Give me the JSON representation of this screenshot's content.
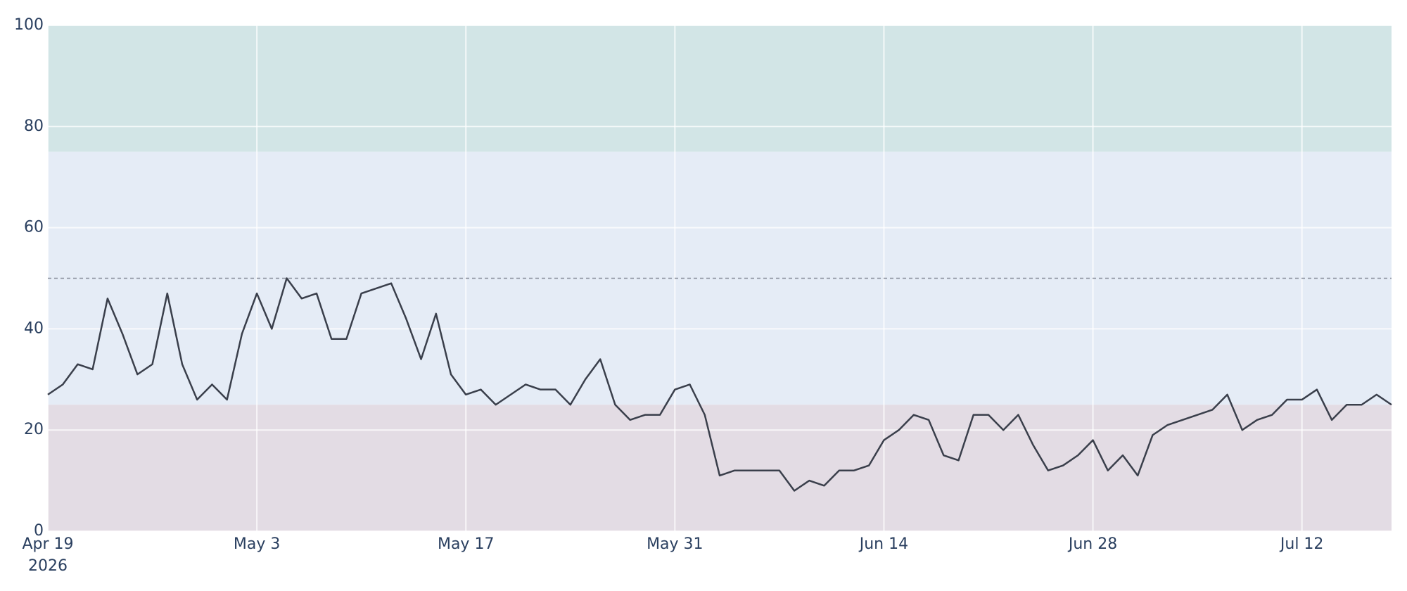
{
  "chart_data": {
    "type": "line",
    "x": [
      "2026-04-19",
      "2026-04-20",
      "2026-04-21",
      "2026-04-22",
      "2026-04-23",
      "2026-04-24",
      "2026-04-25",
      "2026-04-26",
      "2026-04-27",
      "2026-04-28",
      "2026-04-29",
      "2026-04-30",
      "2026-05-01",
      "2026-05-02",
      "2026-05-03",
      "2026-05-04",
      "2026-05-05",
      "2026-05-06",
      "2026-05-07",
      "2026-05-08",
      "2026-05-09",
      "2026-05-10",
      "2026-05-12",
      "2026-05-13",
      "2026-05-14",
      "2026-05-15",
      "2026-05-16",
      "2026-05-17",
      "2026-05-18",
      "2026-05-19",
      "2026-05-21",
      "2026-05-22",
      "2026-05-23",
      "2026-05-24",
      "2026-05-25",
      "2026-05-26",
      "2026-05-27",
      "2026-05-28",
      "2026-05-29",
      "2026-05-30",
      "2026-05-31",
      "2026-06-01",
      "2026-06-02",
      "2026-06-03",
      "2026-06-04",
      "2026-06-07",
      "2026-06-08",
      "2026-06-09",
      "2026-06-10",
      "2026-06-11",
      "2026-06-12",
      "2026-06-13",
      "2026-06-14",
      "2026-06-15",
      "2026-06-16",
      "2026-06-17",
      "2026-06-18",
      "2026-06-19",
      "2026-06-20",
      "2026-06-21",
      "2026-06-22",
      "2026-06-23",
      "2026-06-24",
      "2026-06-25",
      "2026-06-26",
      "2026-06-27",
      "2026-06-28",
      "2026-06-29",
      "2026-06-30",
      "2026-07-01",
      "2026-07-02",
      "2026-07-03",
      "2026-07-06",
      "2026-07-07",
      "2026-07-08",
      "2026-07-09",
      "2026-07-10",
      "2026-07-11",
      "2026-07-12",
      "2026-07-13",
      "2026-07-14",
      "2026-07-15",
      "2026-07-16",
      "2026-07-17",
      "2026-07-18"
    ],
    "series": [
      {
        "color": "#3a3f4b",
        "values": [
          27,
          29,
          33,
          32,
          46,
          39,
          31,
          33,
          47,
          33,
          26,
          29,
          26,
          39,
          47,
          40,
          50,
          46,
          47,
          38,
          38,
          47,
          49,
          42,
          34,
          43,
          31,
          27,
          28,
          25,
          29,
          28,
          28,
          25,
          30,
          34,
          25,
          22,
          23,
          23,
          28,
          29,
          23,
          11,
          12,
          12,
          8,
          10,
          9,
          12,
          12,
          13,
          18,
          20,
          23,
          22,
          15,
          14,
          23,
          23,
          20,
          23,
          17,
          12,
          13,
          15,
          18,
          12,
          15,
          11,
          19,
          21,
          24,
          27,
          20,
          22,
          23,
          26,
          26,
          28,
          22,
          25,
          25,
          27,
          25
        ]
      }
    ],
    "xlim": [
      "2026-04-19",
      "2026-07-18"
    ],
    "xticks": [
      {
        "value": "2026-04-19",
        "label": "Apr 19"
      },
      {
        "value": "2026-05-03",
        "label": "May 3"
      },
      {
        "value": "2026-05-17",
        "label": "May 17"
      },
      {
        "value": "2026-05-31",
        "label": "May 31"
      },
      {
        "value": "2026-06-14",
        "label": "Jun 14"
      },
      {
        "value": "2026-06-28",
        "label": "Jun 28"
      },
      {
        "value": "2026-07-12",
        "label": "Jul 12"
      }
    ],
    "xtick_year": "2026",
    "ylim": [
      0,
      100
    ],
    "yticks": [
      0,
      20,
      40,
      60,
      80,
      100
    ],
    "grid": true,
    "bands": [
      {
        "from": 75,
        "to": 100,
        "color": "#d2e5e6"
      },
      {
        "from": 25,
        "to": 75,
        "color": "#e5ecf6"
      },
      {
        "from": 0,
        "to": 25,
        "color": "#e3dce4"
      }
    ],
    "reference_line": {
      "value": 50,
      "color": "#8a8f9c"
    }
  }
}
